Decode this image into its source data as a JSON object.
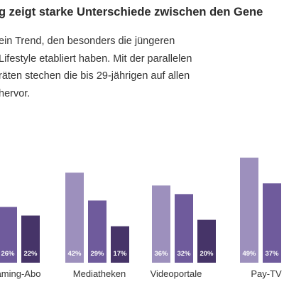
{
  "headline": "g zeigt starke Unterschiede zwischen den Gene",
  "intro": [
    "ein Trend, den besonders die jüngeren",
    "Lifestyle etabliert haben. Mit der parallelen",
    "räten stechen die bis 29-jährigen auf allen",
    "hervor."
  ],
  "colors": {
    "light": "#9d90bd",
    "medium": "#6f5b9c",
    "dark": "#463468"
  },
  "chart_data": {
    "type": "bar",
    "categories": [
      "aming-Abo",
      "Mediatheken",
      "Videoportale",
      "Pay-TV"
    ],
    "series": [
      {
        "values": [
          null,
          42,
          36,
          49
        ]
      },
      {
        "values": [
          26,
          29,
          32,
          37
        ]
      },
      {
        "values": [
          22,
          17,
          20,
          null
        ]
      }
    ],
    "value_labels": [
      [
        null,
        "42%",
        "36%",
        "49%"
      ],
      [
        "26%",
        "29%",
        "32%",
        "37%"
      ],
      [
        "22%",
        "17%",
        "20%",
        null
      ]
    ]
  }
}
